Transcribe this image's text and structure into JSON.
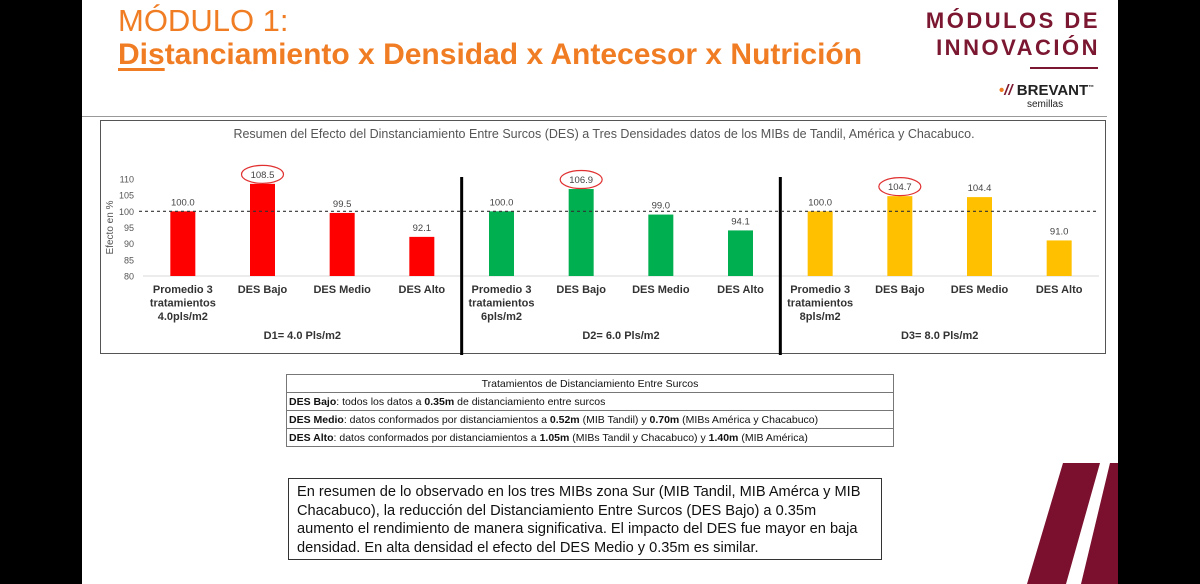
{
  "header": {
    "title_line1": "MÓDULO 1:",
    "title_line2_underlined": "Dis",
    "title_line2_rest": "tanciamiento x Densidad x Antecesor x Nutrición",
    "title_color": "#F07D23"
  },
  "logo": {
    "line1": "MÓDULOS DE",
    "line2": "INNOVACIÓN",
    "brand": "BREVANT",
    "tm": "™",
    "sub": "semillas",
    "color": "#7B1730"
  },
  "chart_data": {
    "type": "bar",
    "title": "Resumen del Efecto del Dinstanciamiento Entre Surcos (DES) a Tres Densidades datos de los MIBs de Tandil, América y Chacabuco.",
    "ylabel": "Efecto en %",
    "ylim": [
      80,
      110
    ],
    "yticks": [
      80,
      85,
      90,
      95,
      100,
      105,
      110
    ],
    "reference_line": 100,
    "groups": [
      {
        "label": "D1= 4.0 Pls/m2",
        "color": "#FF0000",
        "categories": [
          "Promedio 3 tratamientos 4.0pls/m2",
          "DES Bajo",
          "DES Medio",
          "DES Alto"
        ],
        "values": [
          100.0,
          108.5,
          99.5,
          92.1
        ],
        "highlighted": "DES Bajo"
      },
      {
        "label": "D2= 6.0 Pls/m2",
        "color": "#00B050",
        "categories": [
          "Promedio 3 tratamientos 6pls/m2",
          "DES Bajo",
          "DES Medio",
          "DES Alto"
        ],
        "values": [
          100.0,
          106.9,
          99.0,
          94.1
        ],
        "highlighted": "DES Bajo"
      },
      {
        "label": "D3= 8.0 Pls/m2",
        "color": "#FFC000",
        "categories": [
          "Promedio 3 tratamientos 8pls/m2",
          "DES Bajo",
          "DES Medio",
          "DES Alto"
        ],
        "values": [
          100.0,
          104.7,
          104.4,
          91.0
        ],
        "highlighted": "DES Bajo"
      }
    ]
  },
  "table": {
    "header": "Tratamientos de Distanciamiento Entre Surcos",
    "rows": [
      [
        {
          "b": "DES Bajo"
        },
        {
          "t": ": todos los datos a "
        },
        {
          "b": "0.35m"
        },
        {
          "t": " de distanciamiento entre surcos"
        }
      ],
      [
        {
          "b": "DES Medio"
        },
        {
          "t": ": datos conformados por distanciamientos a "
        },
        {
          "b": "0.52m"
        },
        {
          "t": " (MIB Tandil) y "
        },
        {
          "b": "0.70m"
        },
        {
          "t": " (MIBs América y Chacabuco)"
        }
      ],
      [
        {
          "b": "DES Alto"
        },
        {
          "t": ": datos conformados por distanciamientos a "
        },
        {
          "b": "1.05m"
        },
        {
          "t": " (MIBs Tandil y Chacabuco)  y "
        },
        {
          "b": "1.40m"
        },
        {
          "t": " (MIB América)"
        }
      ]
    ]
  },
  "summary": "En resumen de lo observado en los tres MIBs zona Sur (MIB Tandil, MIB Amérca y MIB Chacabuco), la reducción del Distanciamiento Entre Surcos (DES Bajo) a 0.35m aumento el rendimiento de manera significativa. El impacto del DES fue mayor en baja densidad. En alta densidad el efecto del DES Medio y 0.35m es similar."
}
